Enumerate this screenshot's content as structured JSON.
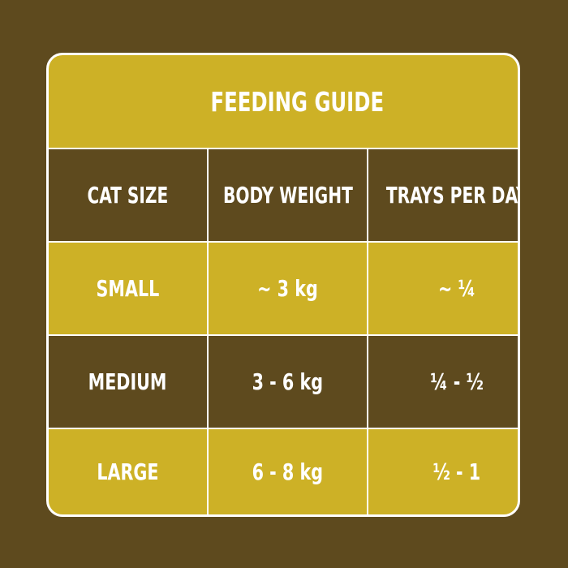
{
  "guide": {
    "title": "FEEDING GUIDE",
    "columns": [
      "CAT SIZE",
      "BODY WEIGHT",
      "TRAYS PER DAY"
    ],
    "rows": [
      [
        "SMALL",
        "~ 3 kg",
        "~ ¼"
      ],
      [
        "MEDIUM",
        "3 - 6 kg",
        "¼ - ½"
      ],
      [
        "LARGE",
        "6 - 8 kg",
        "½ - 1"
      ]
    ]
  },
  "colors": {
    "brown": "#5e4a1e",
    "gold": "#cdb126",
    "border": "#ffffff",
    "text": "#ffffff"
  }
}
